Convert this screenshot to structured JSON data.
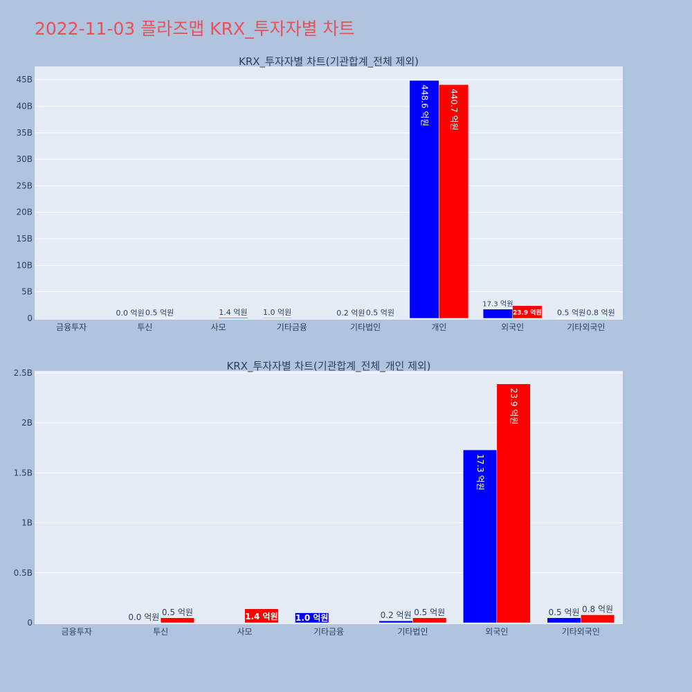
{
  "page": {
    "title": "2022-11-03 플라즈맵 KRX_투자자별 차트"
  },
  "colors": {
    "background": "#b0c4de",
    "plot_bg": "#e5ecf6",
    "buy": "#0000ff",
    "sell": "#ff0000",
    "title": "#e8505b",
    "text": "#2a3f5f"
  },
  "chart_data": [
    {
      "type": "bar",
      "title": "KRX_투자자별 차트(기관합계_전체 제외)",
      "categories": [
        "금융투자",
        "투신",
        "사모",
        "기타금융",
        "기타법인",
        "개인",
        "외국인",
        "기타외국인"
      ],
      "series": [
        {
          "values": [
            0,
            0,
            0,
            100000000,
            20000000,
            44860000000,
            1730000000,
            50000000
          ],
          "labels": [
            "",
            "0.0 억원",
            "",
            "1.0 억원",
            "0.2 억원",
            "448.6 억원",
            "17.3 억원",
            "0.5 억원"
          ]
        },
        {
          "values": [
            0,
            50000000,
            140000000,
            0,
            50000000,
            44070000000,
            2390000000,
            80000000
          ],
          "labels": [
            "",
            "0.5 억원",
            "1.4 억원",
            "",
            "0.5 억원",
            "440.7 억원",
            "23.9 억원",
            "0.8 억원"
          ]
        }
      ],
      "yticks": [
        "0",
        "5B",
        "10B",
        "15B",
        "20B",
        "25B",
        "30B",
        "35B",
        "40B",
        "45B"
      ],
      "ylim": [
        0,
        47500000000
      ],
      "grid": true
    },
    {
      "type": "bar",
      "title": "KRX_투자자별 차트(기관합계_전체_개인 제외)",
      "categories": [
        "금융투자",
        "투신",
        "사모",
        "기타금융",
        "기타법인",
        "외국인",
        "기타외국인"
      ],
      "series": [
        {
          "values": [
            0,
            0,
            0,
            100000000,
            20000000,
            1730000000,
            50000000
          ],
          "labels": [
            "",
            "0.0 억원",
            "",
            "1.0 억원",
            "0.2 억원",
            "17.3 억원",
            "0.5 억원"
          ]
        },
        {
          "values": [
            0,
            50000000,
            140000000,
            0,
            50000000,
            2390000000,
            80000000
          ],
          "labels": [
            "",
            "0.5 억원",
            "1.4 억원",
            "",
            "0.5 억원",
            "23.9 억원",
            "0.8 억원"
          ]
        }
      ],
      "yticks": [
        "0",
        "0.5B",
        "1B",
        "1.5B",
        "2B",
        "2.5B"
      ],
      "ylim": [
        0,
        2520000000
      ],
      "grid": true
    }
  ]
}
